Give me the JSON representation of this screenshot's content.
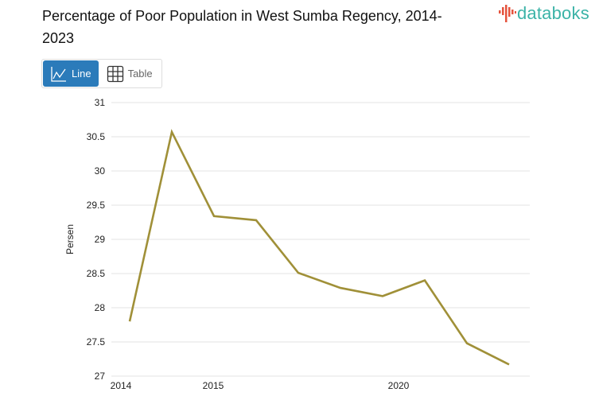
{
  "title": "Percentage of Poor Population in West Sumba Regency, 2014-2023",
  "logo": {
    "text": "databoks",
    "colors": {
      "icon": "#e5533d",
      "text": "#3bb3a7"
    }
  },
  "view_toggle": {
    "line_label": "Line",
    "table_label": "Table",
    "active": "Line",
    "active_color": "#2b7bba"
  },
  "chart_data": {
    "type": "line",
    "title": "Percentage of Poor Population in West Sumba Regency, 2014-2023",
    "xlabel": "",
    "ylabel": "Persen",
    "ylim": [
      27,
      31
    ],
    "yticks": [
      "27",
      "27.5",
      "28",
      "28.5",
      "29",
      "29.5",
      "30",
      "30.5",
      "31"
    ],
    "xtick_labels": [
      "2014",
      "2015",
      "2020"
    ],
    "grid": true,
    "line_color": "#a09038",
    "x": [
      2014,
      2015,
      2016,
      2017,
      2018,
      2019,
      2020,
      2021,
      2022,
      2023
    ],
    "values": [
      27.8,
      30.57,
      29.34,
      29.28,
      28.51,
      28.29,
      28.17,
      28.4,
      27.48,
      27.17
    ]
  }
}
